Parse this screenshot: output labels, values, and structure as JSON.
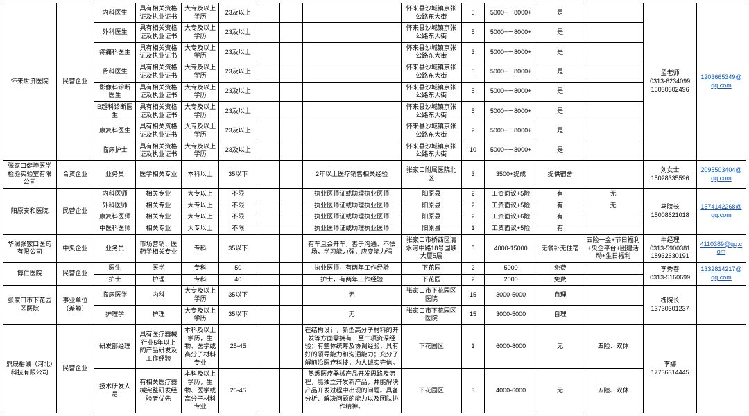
{
  "colors": {
    "border": "#000000",
    "link": "#1155cc",
    "bg": "#ffffff",
    "text": "#000000"
  },
  "column_widths_pct": [
    7.0,
    5.0,
    5.5,
    6.0,
    5.0,
    5.0,
    3.0,
    3.0,
    13.0,
    8.0,
    3.0,
    7.0,
    6.0,
    8.0,
    7.0,
    6.5
  ],
  "companies": [
    {
      "name": "怀来世济医院",
      "type": "民营企业",
      "contact": "孟老师\n0313-6234099\n15030302496",
      "email": "1203665349@qq.com",
      "rows": [
        {
          "pos": "内科医生",
          "req": "具有相关资格证及执业证书",
          "edu": "大专及以上学历",
          "age": "23及以上",
          "exp": "",
          "addr": "怀来县沙城镇京张公路东大街",
          "num": "5",
          "sal": "5000+－8000+",
          "oth": "是"
        },
        {
          "pos": "外科医生",
          "req": "具有相关资格证及执业证书",
          "edu": "大专及以上学历",
          "age": "23及以上",
          "exp": "",
          "addr": "怀来县沙城镇京张公路东大街",
          "num": "5",
          "sal": "5000+－8000+",
          "oth": "是"
        },
        {
          "pos": "疼痛科医生",
          "req": "具有相关资格证及执业证书",
          "edu": "大专及以上学历",
          "age": "23及以上",
          "exp": "",
          "addr": "怀来县沙城镇京张公路东大街",
          "num": "3",
          "sal": "5000+－8000+",
          "oth": "是"
        },
        {
          "pos": "骨科医生",
          "req": "具有相关资格证及执业证书",
          "edu": "大专及以上学历",
          "age": "23及以上",
          "exp": "",
          "addr": "怀来县沙城镇京张公路东大街",
          "num": "5",
          "sal": "5000+－8000+",
          "oth": "是"
        },
        {
          "pos": "影像科诊断医生",
          "req": "具有相关资格证及执业证书",
          "edu": "大专及以上学历",
          "age": "23及以上",
          "exp": "",
          "addr": "怀来县沙城镇京张公路东大街",
          "num": "5",
          "sal": "5000+－8000+",
          "oth": "是"
        },
        {
          "pos": "B超科诊断医生",
          "req": "具有相关资格证及执业证书",
          "edu": "大专及以上学历",
          "age": "23及以上",
          "exp": "",
          "addr": "怀来县沙城镇京张公路东大街",
          "num": "5",
          "sal": "5000+－8000+",
          "oth": "是"
        },
        {
          "pos": "康复科医生",
          "req": "具有相关资格证及执业证书",
          "edu": "大专及以上学历",
          "age": "23及以上",
          "exp": "",
          "addr": "怀来县沙城镇京张公路东大街",
          "num": "2",
          "sal": "5000+－8000+",
          "oth": "是"
        },
        {
          "pos": "临床护士",
          "req": "具有相关资格证及执业证书",
          "edu": "大专及以上学历",
          "age": "23及以上",
          "exp": "",
          "addr": "怀来县沙城镇京张公路东大街",
          "num": "10",
          "sal": "5000+－8000+",
          "oth": "是"
        }
      ]
    },
    {
      "name": "张家口健坤医学检验实验室有限公司",
      "type": "合资企业",
      "contact": "刘女士\n15028335596",
      "email": "2095503404@qq.com",
      "rows": [
        {
          "pos": "业务员",
          "req": "医学相关专业",
          "edu": "本科以上",
          "age": "35以下",
          "exp": "2年以上医疗销售相关经验",
          "addr": "张家口附属医院北区",
          "num": "3",
          "sal": "3500+提成",
          "oth": "提供宿舍"
        }
      ]
    },
    {
      "name": "阳原安和医院",
      "type": "民营企业",
      "contact": "马院长\n15008621018",
      "email": "1574142268@qq.com",
      "rows": [
        {
          "pos": "内科医师",
          "req": "相关专业",
          "edu": "大专以上",
          "age": "不限",
          "exp": "执业医师证或助理执业医师",
          "addr": "阳原县",
          "num": "2",
          "sal": "工资面议+5险",
          "oth": "有",
          "ben": "无"
        },
        {
          "pos": "外科医师",
          "req": "相关专业",
          "edu": "大专以上",
          "age": "不限",
          "exp": "执业医师证或助理执业医师",
          "addr": "阳原县",
          "num": "2",
          "sal": "工资面议+5险",
          "oth": "有",
          "ben": "无"
        },
        {
          "pos": "康复科医师",
          "req": "相关专业",
          "edu": "大专以上",
          "age": "不限",
          "exp": "执业医师证或助理执业医师",
          "addr": "阳原县",
          "num": "2",
          "sal": "工资面议+6险",
          "oth": "有",
          "ben": ""
        },
        {
          "pos": "中医科医师",
          "req": "相关专业",
          "edu": "大专以上",
          "age": "不限",
          "exp": "执业医师证或助理执业医师",
          "addr": "阳原县",
          "num": "1",
          "sal": "工资面议+5险",
          "oth": "有",
          "ben": ""
        }
      ]
    },
    {
      "name": "华润张家口医药有限公司",
      "type": "中央企业",
      "contact": "牛经理\n0313-5900381\n18932630191",
      "email": "4110389@qq.com",
      "rows": [
        {
          "pos": "业务员",
          "req": "市场营销、医药学相关专业",
          "edu": "专科",
          "age": "35以下",
          "exp": "有车且会开车，善于沟通、不怯场，学习能力强，应变能力强",
          "addr": "张家口市桥西区清水河中路18号国峡大厦5层",
          "num": "5",
          "sal": "4000-15000",
          "oth": "无餐补无住宿",
          "ben": "五险一金+节日福利+央企平台+团建活动+生日福利"
        }
      ]
    },
    {
      "name": "博仁医院",
      "type": "民营企业",
      "contact": "李秀春\n0313-5160699",
      "email": "1332814217@qq.com",
      "rows": [
        {
          "pos": "医生",
          "req": "医学",
          "edu": "专科",
          "age": "50",
          "exp": "执业医师，有两年工作经验",
          "addr": "下花园",
          "num": "2",
          "sal": "5000",
          "oth": "免费",
          "ben": ""
        },
        {
          "pos": "护士",
          "req": "护理",
          "edu": "专科",
          "age": "40",
          "exp": "护士，有两年工作经验",
          "addr": "下花园",
          "num": "2",
          "sal": "2000",
          "oth": "免费",
          "ben": ""
        }
      ]
    },
    {
      "name": "张家口市下花园区医院",
      "type": "事业单位（差额）",
      "contact": "槐院长\n13730301237",
      "email": "",
      "rows": [
        {
          "pos": "临床医学",
          "req": "内科",
          "edu": "大专及以上学历",
          "age": "35以下",
          "exp": "无",
          "addr": "张家口市下花园区医院",
          "num": "15",
          "sal": "3000-5000",
          "oth": "自理",
          "ben": ""
        },
        {
          "pos": "护理学",
          "req": "护理",
          "edu": "大专及以上学历",
          "age": "35以下",
          "exp": "无",
          "addr": "张家口市下花园区医院",
          "num": "15",
          "sal": "3000-5000",
          "oth": "自理",
          "ben": ""
        }
      ]
    },
    {
      "name": "鼎晟裕诚（河北）科技有限公司",
      "type": "民营企业",
      "contact": "李娜\n17736314445",
      "email": "",
      "rows": [
        {
          "pos": "研发部经理",
          "req": "具有医疗器械行业5年以上的产品研发及工作经验",
          "edu": "本科及以上学历，生物、医学或高分子材料专业",
          "age": "25-45",
          "exp": "在结构设计，新型高分子材料的开发等方面需拥有一至二项资深经验；有整体统筹及协调经验，具有好的领导能力和沟通能力；充分了解前沿医疗科技，为人诚实守信。",
          "addr": "下花园区",
          "num": "1",
          "sal": "6000-8000",
          "oth": "无",
          "ben": "五险、双休"
        },
        {
          "pos": "技术研发人员",
          "req": "有相关医疗器械完整研发经验者优先",
          "edu": "本科及以上学历，生物、医学或高分子材料专业",
          "age": "25-45",
          "exp": "熟悉医疗器械产品开发思路及流程，能独立开发新产品，并能解决产品开发过程中出现的问题。具备分析、解决问题的能力以及团队协作精神。",
          "addr": "下花园区",
          "num": "3",
          "sal": "4000-6000",
          "oth": "无",
          "ben": "五险、双休"
        }
      ]
    }
  ]
}
